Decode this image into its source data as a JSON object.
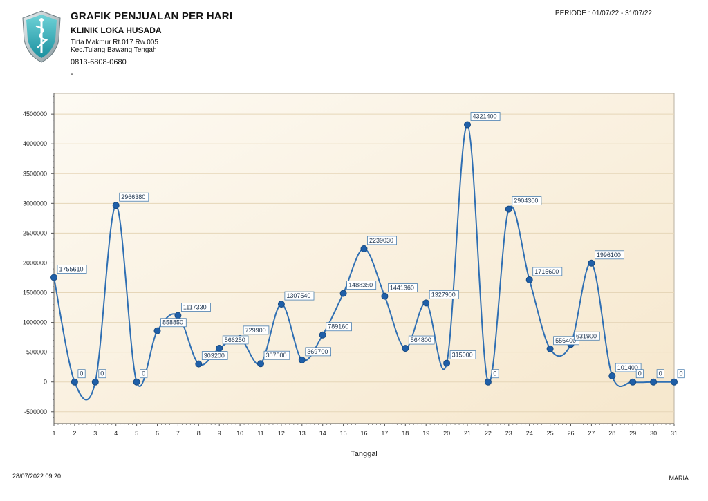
{
  "header": {
    "title": "GRAFIK PENJUALAN PER HARI",
    "clinic": "KLINIK LOKA HUSADA",
    "address_line1": "Tirta Makmur Rt.017 Rw.005",
    "address_line2": "Kec.Tulang Bawang Tengah",
    "phone": "0813-6808-0680",
    "extra": "-",
    "periode": "PERIODE : 01/07/22 - 31/07/22"
  },
  "footer": {
    "printed_at": "28/07/2022 09:20",
    "user": "MARIA"
  },
  "colors": {
    "line": "#2f6fb3",
    "marker": "#1f5fa8",
    "plot_bg_light": "#fdfaf3",
    "plot_bg_dark": "#f6e7cc",
    "grid": "#e6d6b8",
    "label_border": "#4a7fb0"
  },
  "chart_data": {
    "type": "line",
    "smooth": true,
    "title": "GRAFIK PENJUALAN PER HARI",
    "xlabel": "Tanggal",
    "ylabel": "",
    "x": [
      1,
      2,
      3,
      4,
      5,
      6,
      7,
      8,
      9,
      10,
      11,
      12,
      13,
      14,
      15,
      16,
      17,
      18,
      19,
      20,
      21,
      22,
      23,
      24,
      25,
      26,
      27,
      28,
      29,
      30,
      31
    ],
    "values": [
      1755610,
      0,
      0,
      2966380,
      0,
      858850,
      1117330,
      303200,
      566250,
      729900,
      307500,
      1307540,
      369700,
      789160,
      1488350,
      2239030,
      1441360,
      564800,
      1327900,
      315000,
      4321400,
      0,
      2904300,
      1715600,
      556400,
      631900,
      1996100,
      101400,
      0,
      0,
      0
    ],
    "ylim": [
      -700000,
      4850000
    ],
    "yticks": [
      -500000,
      0,
      500000,
      1000000,
      1500000,
      2000000,
      2500000,
      3000000,
      3500000,
      4000000,
      4500000
    ],
    "xticks": [
      1,
      2,
      3,
      4,
      5,
      6,
      7,
      8,
      9,
      10,
      11,
      12,
      13,
      14,
      15,
      16,
      17,
      18,
      19,
      20,
      21,
      22,
      23,
      24,
      25,
      26,
      27,
      28,
      29,
      30,
      31
    ],
    "grid": true,
    "legend": "none",
    "data_labels": true
  }
}
